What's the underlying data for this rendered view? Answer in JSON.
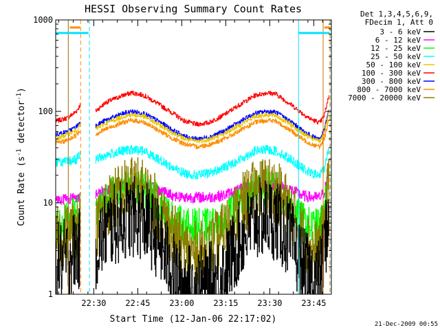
{
  "chart_data": {
    "type": "line",
    "title": "HESSI Observing Summary Count Rates",
    "xlabel": "Start Time (12-Jan-06 22:17:02)",
    "ylabel_main": "Count Rate (s",
    "ylabel_sup1": "-1",
    "ylabel_mid": " detector",
    "ylabel_sup2": "-1",
    "ylabel_end": ")",
    "footer": "21-Dec-2009 00:55",
    "yscale": "log",
    "ylim": [
      1,
      1000
    ],
    "xlim_minutes": [
      0,
      94
    ],
    "y_ticks": [
      {
        "value": 1,
        "label": "1"
      },
      {
        "value": 10,
        "label": "10"
      },
      {
        "value": 100,
        "label": "100"
      },
      {
        "value": 1000,
        "label": "1000"
      }
    ],
    "x_ticks": [
      {
        "minute": 13,
        "label": "22:30"
      },
      {
        "minute": 28,
        "label": "22:45"
      },
      {
        "minute": 43,
        "label": "23:00"
      },
      {
        "minute": 58,
        "label": "23:15"
      },
      {
        "minute": 73,
        "label": "23:30"
      },
      {
        "minute": 88,
        "label": "23:45"
      }
    ],
    "legend_header": [
      "Det 1,3,4,5,6,9,",
      "FDecim 1, Att 0"
    ],
    "legend": [
      {
        "label": "3 - 6 keV",
        "color": "#000000"
      },
      {
        "label": "6 - 12 keV",
        "color": "#ff00ff"
      },
      {
        "label": "12 - 25 keV",
        "color": "#00ff00"
      },
      {
        "label": "25 - 50 keV",
        "color": "#00ffff"
      },
      {
        "label": "50 - 100 keV",
        "color": "#e6c800"
      },
      {
        "label": "100 - 300 keV",
        "color": "#ff0000"
      },
      {
        "label": "300 - 800 keV",
        "color": "#0000ff"
      },
      {
        "label": "800 - 7000 keV",
        "color": "#ff8c00"
      },
      {
        "label": "7000 - 20000 keV",
        "color": "#8b7d00"
      }
    ],
    "data_gaps_minutes": [
      [
        8.5,
        13.5
      ],
      [
        93.5,
        94
      ]
    ],
    "series": [
      {
        "name": "100 - 300 keV",
        "color": "#ff0000",
        "points": [
          [
            0,
            78
          ],
          [
            4,
            85
          ],
          [
            7,
            100
          ],
          [
            8.5,
            120
          ],
          [
            13.5,
            100
          ],
          [
            17,
            125
          ],
          [
            23,
            150
          ],
          [
            26,
            160
          ],
          [
            30,
            150
          ],
          [
            35,
            120
          ],
          [
            40,
            95
          ],
          [
            44,
            78
          ],
          [
            48,
            72
          ],
          [
            52,
            75
          ],
          [
            57,
            90
          ],
          [
            63,
            120
          ],
          [
            68,
            150
          ],
          [
            72,
            160
          ],
          [
            75,
            155
          ],
          [
            80,
            120
          ],
          [
            84,
            95
          ],
          [
            87,
            82
          ],
          [
            90,
            75
          ],
          [
            91.5,
            90
          ],
          [
            93,
            145
          ]
        ]
      },
      {
        "name": "300 - 800 keV",
        "color": "#0000ff",
        "points": [
          [
            0,
            56
          ],
          [
            4,
            60
          ],
          [
            7,
            68
          ],
          [
            8.5,
            78
          ],
          [
            13.5,
            70
          ],
          [
            17,
            80
          ],
          [
            23,
            95
          ],
          [
            26,
            100
          ],
          [
            30,
            95
          ],
          [
            35,
            78
          ],
          [
            40,
            62
          ],
          [
            44,
            53
          ],
          [
            48,
            50
          ],
          [
            52,
            52
          ],
          [
            57,
            60
          ],
          [
            63,
            78
          ],
          [
            68,
            95
          ],
          [
            72,
            100
          ],
          [
            75,
            98
          ],
          [
            80,
            78
          ],
          [
            84,
            62
          ],
          [
            87,
            54
          ],
          [
            90,
            50
          ],
          [
            91.5,
            62
          ],
          [
            93,
            100
          ]
        ]
      },
      {
        "name": "50 - 100 keV",
        "color": "#e6c800",
        "points": [
          [
            0,
            50
          ],
          [
            4,
            56
          ],
          [
            7,
            62
          ],
          [
            8.5,
            72
          ],
          [
            13.5,
            64
          ],
          [
            17,
            74
          ],
          [
            23,
            88
          ],
          [
            26,
            92
          ],
          [
            30,
            88
          ],
          [
            35,
            72
          ],
          [
            40,
            58
          ],
          [
            44,
            50
          ],
          [
            48,
            47
          ],
          [
            52,
            49
          ],
          [
            57,
            56
          ],
          [
            63,
            72
          ],
          [
            68,
            88
          ],
          [
            72,
            92
          ],
          [
            75,
            90
          ],
          [
            80,
            72
          ],
          [
            84,
            58
          ],
          [
            87,
            51
          ],
          [
            90,
            47
          ],
          [
            91.5,
            58
          ],
          [
            93,
            92
          ]
        ]
      },
      {
        "name": "800 - 7000 keV",
        "color": "#ff8c00",
        "points": [
          [
            0,
            45
          ],
          [
            4,
            48
          ],
          [
            7,
            55
          ],
          [
            8.5,
            63
          ],
          [
            13.5,
            56
          ],
          [
            17,
            64
          ],
          [
            23,
            76
          ],
          [
            26,
            80
          ],
          [
            30,
            76
          ],
          [
            35,
            62
          ],
          [
            40,
            50
          ],
          [
            44,
            44
          ],
          [
            48,
            41
          ],
          [
            52,
            43
          ],
          [
            57,
            49
          ],
          [
            63,
            62
          ],
          [
            68,
            76
          ],
          [
            72,
            80
          ],
          [
            75,
            78
          ],
          [
            80,
            62
          ],
          [
            84,
            50
          ],
          [
            87,
            44
          ],
          [
            90,
            41
          ],
          [
            91.5,
            50
          ],
          [
            93,
            80
          ]
        ]
      },
      {
        "name": "25 - 50 keV",
        "color": "#00ffff",
        "points": [
          [
            0,
            28
          ],
          [
            4,
            28
          ],
          [
            7,
            30
          ],
          [
            8.5,
            34
          ],
          [
            13.5,
            30
          ],
          [
            17,
            33
          ],
          [
            23,
            37
          ],
          [
            26,
            38
          ],
          [
            30,
            37
          ],
          [
            35,
            30
          ],
          [
            40,
            24
          ],
          [
            44,
            21
          ],
          [
            48,
            20
          ],
          [
            52,
            21
          ],
          [
            57,
            24
          ],
          [
            63,
            30
          ],
          [
            68,
            37
          ],
          [
            72,
            38
          ],
          [
            75,
            37
          ],
          [
            80,
            30
          ],
          [
            84,
            24
          ],
          [
            87,
            21
          ],
          [
            90,
            20
          ],
          [
            91.5,
            24
          ],
          [
            93,
            38
          ]
        ]
      },
      {
        "name": "6 - 12 keV",
        "color": "#ff00ff",
        "points": [
          [
            0,
            11
          ],
          [
            4,
            11
          ],
          [
            7,
            11.5
          ],
          [
            8.5,
            12
          ],
          [
            13.5,
            12
          ],
          [
            17,
            14
          ],
          [
            23,
            15.5
          ],
          [
            26,
            16
          ],
          [
            30,
            15.5
          ],
          [
            35,
            14
          ],
          [
            40,
            12
          ],
          [
            44,
            11.5
          ],
          [
            48,
            11.5
          ],
          [
            52,
            11.5
          ],
          [
            57,
            12
          ],
          [
            63,
            14
          ],
          [
            68,
            15.5
          ],
          [
            72,
            16
          ],
          [
            75,
            15.5
          ],
          [
            80,
            14
          ],
          [
            84,
            12
          ],
          [
            87,
            11.5
          ],
          [
            90,
            11.5
          ],
          [
            91.5,
            13
          ],
          [
            93,
            21
          ]
        ]
      },
      {
        "name": "12 - 25 keV",
        "color": "#00ff00",
        "points": [
          [
            0,
            5.5
          ],
          [
            4,
            6.5
          ],
          [
            7,
            7.5
          ],
          [
            8.5,
            8.5
          ],
          [
            13.5,
            8
          ],
          [
            17,
            11
          ],
          [
            23,
            14
          ],
          [
            26,
            15
          ],
          [
            30,
            14
          ],
          [
            35,
            10
          ],
          [
            40,
            6.5
          ],
          [
            44,
            5.5
          ],
          [
            48,
            5.5
          ],
          [
            52,
            5.5
          ],
          [
            57,
            6
          ],
          [
            63,
            10
          ],
          [
            68,
            14
          ],
          [
            72,
            15
          ],
          [
            75,
            14
          ],
          [
            80,
            10
          ],
          [
            84,
            6.5
          ],
          [
            87,
            5.5
          ],
          [
            90,
            5.5
          ],
          [
            91.5,
            8
          ],
          [
            93,
            17
          ]
        ]
      },
      {
        "name": "7000 - 20000 keV",
        "color": "#8b7d00",
        "points": [
          [
            0,
            4
          ],
          [
            4,
            4.5
          ],
          [
            7,
            5.5
          ],
          [
            8.5,
            6
          ],
          [
            13.5,
            5
          ],
          [
            17,
            9
          ],
          [
            23,
            13.5
          ],
          [
            26,
            15
          ],
          [
            30,
            13.5
          ],
          [
            35,
            8.5
          ],
          [
            40,
            4.5
          ],
          [
            44,
            3
          ],
          [
            48,
            2.8
          ],
          [
            52,
            3
          ],
          [
            57,
            4.5
          ],
          [
            63,
            9
          ],
          [
            68,
            13.5
          ],
          [
            72,
            15
          ],
          [
            75,
            13.5
          ],
          [
            80,
            8.5
          ],
          [
            84,
            4.5
          ],
          [
            87,
            3
          ],
          [
            90,
            3
          ],
          [
            91.5,
            6
          ],
          [
            93,
            16
          ]
        ]
      },
      {
        "name": "3 - 6 keV",
        "color": "#000000",
        "points": [
          [
            0,
            2.2
          ],
          [
            4,
            2.5
          ],
          [
            7,
            3.2
          ],
          [
            8.5,
            3
          ],
          [
            13.5,
            3
          ],
          [
            17,
            5
          ],
          [
            23,
            6.5
          ],
          [
            26,
            7
          ],
          [
            30,
            6.5
          ],
          [
            35,
            4
          ],
          [
            40,
            1.7
          ],
          [
            44,
            1.3
          ],
          [
            48,
            1.2
          ],
          [
            52,
            1.3
          ],
          [
            57,
            1.7
          ],
          [
            63,
            4
          ],
          [
            68,
            6.5
          ],
          [
            72,
            7
          ],
          [
            75,
            6.5
          ],
          [
            80,
            4
          ],
          [
            84,
            2
          ],
          [
            87,
            1.5
          ],
          [
            90,
            1.5
          ],
          [
            91.5,
            3
          ],
          [
            93,
            8
          ]
        ]
      }
    ]
  }
}
